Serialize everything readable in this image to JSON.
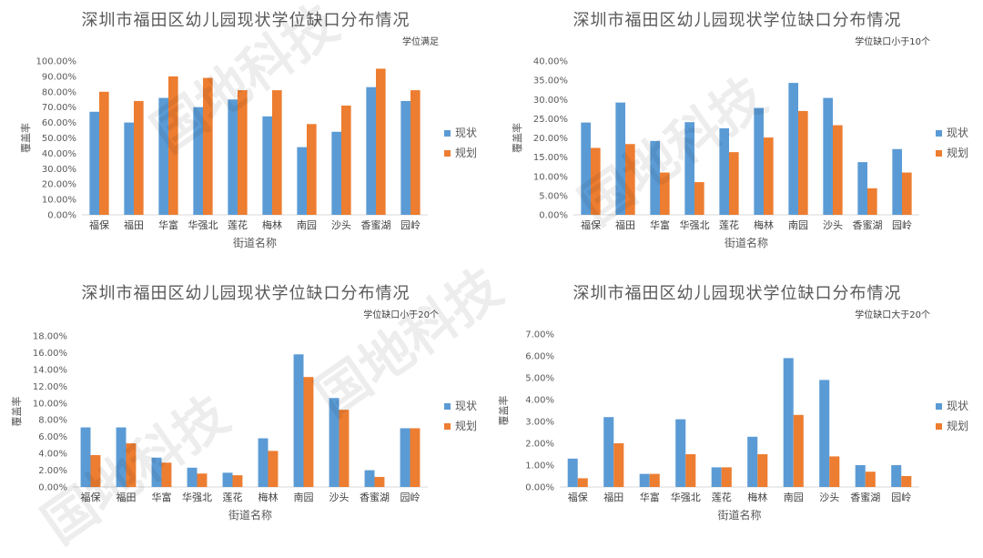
{
  "watermark": "国地科技",
  "colors": {
    "current": "#5B9BD5",
    "plan": "#ED7D31",
    "axis": "#D9D9D9",
    "text": "#595959"
  },
  "chart_data": [
    {
      "type": "bar",
      "title": "深圳市福田区幼儿园现状学位缺口分布情况",
      "subtitle": "学位满足",
      "xlabel": "街道名称",
      "ylabel": "覆盖率",
      "categories": [
        "福保",
        "福田",
        "华富",
        "华强北",
        "莲花",
        "梅林",
        "南园",
        "沙头",
        "香蜜湖",
        "园岭"
      ],
      "ylim": [
        0,
        100
      ],
      "ytick_step": 10,
      "ytick_decimals": 2,
      "ytick_suffix": "%",
      "legend_position": "right",
      "series": [
        {
          "name": "现状",
          "values": [
            67,
            60,
            76,
            70,
            75,
            64,
            44,
            54,
            83,
            74
          ]
        },
        {
          "name": "规划",
          "values": [
            80,
            74,
            90,
            89,
            81,
            81,
            59,
            71,
            95,
            81
          ]
        }
      ]
    },
    {
      "type": "bar",
      "title": "深圳市福田区幼儿园现状学位缺口分布情况",
      "subtitle": "学位缺口小于10个",
      "xlabel": "街道名称",
      "ylabel": "覆盖率",
      "categories": [
        "福保",
        "福田",
        "华富",
        "华强北",
        "莲花",
        "梅林",
        "南园",
        "沙头",
        "香蜜湖",
        "园岭"
      ],
      "ylim": [
        0,
        40
      ],
      "ytick_step": 5,
      "ytick_decimals": 2,
      "ytick_suffix": "%",
      "legend_position": "right",
      "series": [
        {
          "name": "现状",
          "values": [
            24.0,
            29.2,
            19.2,
            24.1,
            22.5,
            27.8,
            34.3,
            30.4,
            13.7,
            17.1
          ]
        },
        {
          "name": "规划",
          "values": [
            17.4,
            18.4,
            11.0,
            8.5,
            16.3,
            20.1,
            27.0,
            23.3,
            6.9,
            11.0
          ]
        }
      ]
    },
    {
      "type": "bar",
      "title": "深圳市福田区幼儿园现状学位缺口分布情况",
      "subtitle": "学位缺口小于20个",
      "xlabel": "街道名称",
      "ylabel": "覆盖率",
      "categories": [
        "福保",
        "福田",
        "华富",
        "华强北",
        "莲花",
        "梅林",
        "南园",
        "沙头",
        "香蜜湖",
        "园岭"
      ],
      "ylim": [
        0,
        18
      ],
      "ytick_step": 2,
      "ytick_decimals": 2,
      "ytick_suffix": "%",
      "legend_position": "right",
      "series": [
        {
          "name": "现状",
          "values": [
            7.1,
            7.1,
            3.5,
            2.3,
            1.7,
            5.8,
            15.8,
            10.6,
            2.0,
            7.0
          ]
        },
        {
          "name": "规划",
          "values": [
            3.8,
            5.2,
            2.9,
            1.6,
            1.4,
            4.3,
            13.1,
            9.2,
            1.2,
            7.0
          ]
        }
      ]
    },
    {
      "type": "bar",
      "title": "深圳市福田区幼儿园现状学位缺口分布情况",
      "subtitle": "学位缺口大于20个",
      "xlabel": "街道名称",
      "ylabel": "覆盖率",
      "categories": [
        "福保",
        "福田",
        "华富",
        "华强北",
        "莲花",
        "梅林",
        "南园",
        "沙头",
        "香蜜湖",
        "园岭"
      ],
      "ylim": [
        0,
        7
      ],
      "ytick_step": 1,
      "ytick_decimals": 2,
      "ytick_suffix": "%",
      "legend_position": "right",
      "series": [
        {
          "name": "现状",
          "values": [
            1.3,
            3.2,
            0.6,
            3.1,
            0.9,
            2.3,
            5.9,
            4.9,
            1.0,
            1.0
          ]
        },
        {
          "name": "规划",
          "values": [
            0.4,
            2.0,
            0.6,
            1.5,
            0.9,
            1.5,
            3.3,
            1.4,
            0.7,
            0.5
          ]
        }
      ]
    }
  ]
}
